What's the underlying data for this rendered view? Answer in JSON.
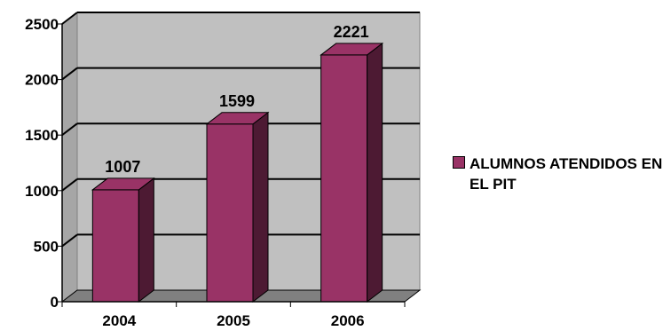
{
  "chart_data": {
    "type": "bar",
    "categories": [
      "2004",
      "2005",
      "2006"
    ],
    "series": [
      {
        "name": "ALUMNOS ATENDIDOS EN EL PIT",
        "values": [
          1007,
          1599,
          2221
        ]
      }
    ],
    "yticks": [
      0,
      500,
      1000,
      1500,
      2000,
      2500
    ],
    "ylim": [
      0,
      2500
    ],
    "grid": true,
    "legend_position": "right",
    "colors": {
      "bar_front": "#993366",
      "bar_top": "#993366",
      "bar_side": "#4d1a33",
      "wall": "#c0c0c0",
      "floor": "#808080",
      "gridline": "#000000"
    }
  }
}
